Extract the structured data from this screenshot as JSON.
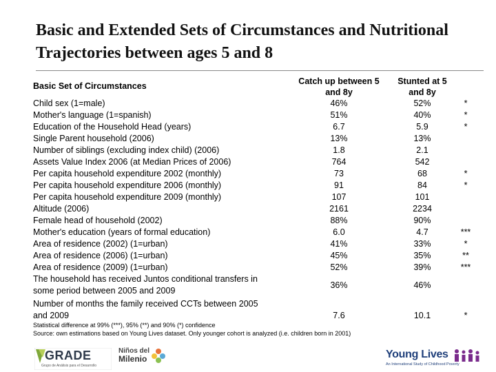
{
  "title": "Basic and Extended Sets of Circumstances and Nutritional Trajectories between ages 5 and 8",
  "table": {
    "section_label": "Basic Set of Circumstances",
    "col1_header_line1": "Catch up between 5",
    "col1_header_line2": "and 8y",
    "col2_header_line1": "Stunted at 5",
    "col2_header_line2": "and 8y",
    "rows": [
      {
        "label": "Child sex (1=male)",
        "v1": "46%",
        "v2": "52%",
        "sig": "*"
      },
      {
        "label": "Mother's language (1=spanish)",
        "v1": "51%",
        "v2": "40%",
        "sig": "*"
      },
      {
        "label": "Education of the Household Head (years)",
        "v1": "6.7",
        "v2": "5.9",
        "sig": "*"
      },
      {
        "label": "Single Parent household (2006)",
        "v1": "13%",
        "v2": "13%",
        "sig": ""
      },
      {
        "label": "Number of siblings (excluding index child) (2006)",
        "v1": "1.8",
        "v2": "2.1",
        "sig": ""
      },
      {
        "label": "Assets Value Index 2006 (at Median Prices of 2006)",
        "v1": "764",
        "v2": "542",
        "sig": ""
      },
      {
        "label": "Per capita household expenditure 2002 (monthly)",
        "v1": "73",
        "v2": "68",
        "sig": "*"
      },
      {
        "label": "Per capita household expenditure 2006 (monthly)",
        "v1": "91",
        "v2": "84",
        "sig": "*"
      },
      {
        "label": "Per capita household expenditure 2009 (monthly)",
        "v1": "107",
        "v2": "101",
        "sig": ""
      },
      {
        "label": "Altitude (2006)",
        "v1": "2161",
        "v2": "2234",
        "sig": ""
      },
      {
        "label": "Female head of household (2002)",
        "v1": "88%",
        "v2": "90%",
        "sig": ""
      },
      {
        "label": "Mother's education (years of formal education)",
        "v1": "6.0",
        "v2": "4.7",
        "sig": "***"
      },
      {
        "label": "Area of residence (2002) (1=urban)",
        "v1": "41%",
        "v2": "33%",
        "sig": "*"
      },
      {
        "label": "Area of residence (2006) (1=urban)",
        "v1": "45%",
        "v2": "35%",
        "sig": "**"
      },
      {
        "label": "Area of residence (2009) (1=urban)",
        "v1": "52%",
        "v2": "39%",
        "sig": "***"
      }
    ],
    "row_juntos_line1": "The household has received Juntos conditional transfers in",
    "row_juntos_line2": "some period between 2005 and 2009",
    "row_juntos_v1": "36%",
    "row_juntos_v2": "46%",
    "row_juntos_sig": "",
    "row_cct_line1": "Number of months the family received CCTs between 2005",
    "row_cct_line2": "and 2009",
    "row_cct_v1": "7.6",
    "row_cct_v2": "10.1",
    "row_cct_sig": "*"
  },
  "footnotes": {
    "significance": "Statistical difference at 99% (***), 95% (**) and 90% (*) confidence",
    "source": "Source: own estimations based on Young Lives dataset. Only younger cohort is analyzed (i.e. children born in 2001)"
  },
  "logos": {
    "grade": "GRADE",
    "grade_sub": "Grupo de Análisis para el Desarrollo",
    "ninos_line1": "Niños del",
    "ninos_line2": "Milenio",
    "young_lives": "Young Lives",
    "young_lives_sub": "An International Study of Childhood Poverty"
  }
}
